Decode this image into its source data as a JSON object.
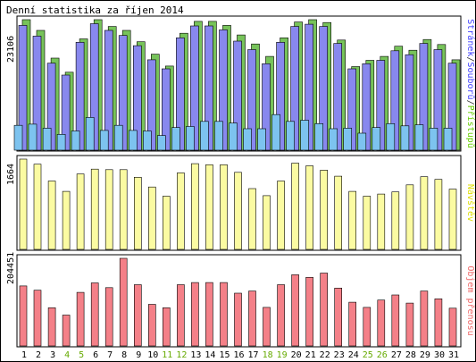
{
  "chart_data": {
    "type": "bar",
    "title": "Denní statistika za říjen 2014",
    "categories": [
      "1",
      "2",
      "3",
      "4",
      "5",
      "6",
      "7",
      "8",
      "9",
      "10",
      "11",
      "12",
      "13",
      "14",
      "15",
      "16",
      "17",
      "18",
      "19",
      "20",
      "21",
      "22",
      "23",
      "24",
      "25",
      "26",
      "27",
      "28",
      "29",
      "30",
      "31"
    ],
    "weekend_days": [
      "4",
      "5",
      "11",
      "12",
      "18",
      "19",
      "25",
      "26"
    ],
    "panels": [
      {
        "name": "traffic",
        "ymax_label": "23106",
        "ymax": 23106,
        "side_label_parts": [
          {
            "text": "Stránek",
            "color": "#4040ff"
          },
          {
            "text": "/",
            "color": "#333333"
          },
          {
            "text": "Souborů",
            "color": "#4040ff"
          },
          {
            "text": "/",
            "color": "#333333"
          },
          {
            "text": "Přístupů",
            "color": "#66cc00"
          }
        ],
        "series": [
          {
            "name": "Přístupů",
            "color": "#77c35a",
            "values": [
              23100,
              21200,
              16300,
              13800,
              19700,
              23100,
              21900,
              21200,
              19200,
              17000,
              14900,
              20700,
              22800,
              22800,
              22100,
              20400,
              18800,
              16600,
              19900,
              22700,
              23100,
              22600,
              19500,
              14800,
              15900,
              16600,
              18400,
              17700,
              19600,
              18700,
              16000
            ]
          },
          {
            "name": "Souborů",
            "color": "#8888ee",
            "values": [
              22100,
              20200,
              15400,
              13300,
              19100,
              22400,
              21200,
              20300,
              18500,
              16000,
              14400,
              19900,
              22000,
              22000,
              21300,
              19300,
              17800,
              15300,
              19100,
              21900,
              22300,
              21900,
              18900,
              14400,
              15300,
              15900,
              17600,
              16900,
              18900,
              17800,
              15400
            ]
          },
          {
            "name": "Stránek",
            "color": "#7dc3ef",
            "values": [
              4400,
              4600,
              3900,
              2800,
              3400,
              5800,
              3500,
              4400,
              3500,
              3400,
              2600,
              4000,
              4200,
              5100,
              5100,
              4800,
              3800,
              3800,
              6300,
              5100,
              5300,
              4700,
              3800,
              3900,
              3000,
              4000,
              4700,
              4300,
              4500,
              3900,
              3900
            ]
          }
        ]
      },
      {
        "name": "visits",
        "ymax_label": "1664",
        "ymax": 1664,
        "side_label_parts": [
          {
            "text": "Návštěv",
            "color": "#dddd00"
          }
        ],
        "series": [
          {
            "name": "Návštěv",
            "color": "#fbfba2",
            "values": [
              1664,
              1570,
              1260,
              1070,
              1390,
              1480,
              1470,
              1470,
              1330,
              1150,
              980,
              1410,
              1580,
              1560,
              1560,
              1420,
              1120,
              990,
              1260,
              1590,
              1540,
              1460,
              1350,
              1070,
              980,
              1020,
              1060,
              1190,
              1340,
              1290,
              1110
            ]
          }
        ]
      },
      {
        "name": "transfer",
        "ymax_label": "204451",
        "ymax": 204451,
        "side_label_parts": [
          {
            "text": "Objem přenosu",
            "color": "#ee6666"
          }
        ],
        "series": [
          {
            "name": "Objem přenosu",
            "color": "#f48088",
            "values": [
              140000,
              130000,
              89000,
              72000,
              125000,
              147000,
              136000,
              204451,
              143000,
              97000,
              89000,
              143000,
              148000,
              148000,
              148000,
              123000,
              128000,
              90000,
              143000,
              166000,
              160000,
              170000,
              135000,
              102000,
              90000,
              107000,
              119000,
              100000,
              128000,
              110000,
              88000
            ]
          }
        ]
      }
    ],
    "colors": {
      "weekday_label": "#000000",
      "weekend_label": "#66aa00",
      "panel_border": "#000000",
      "background": "#ffffff"
    }
  }
}
